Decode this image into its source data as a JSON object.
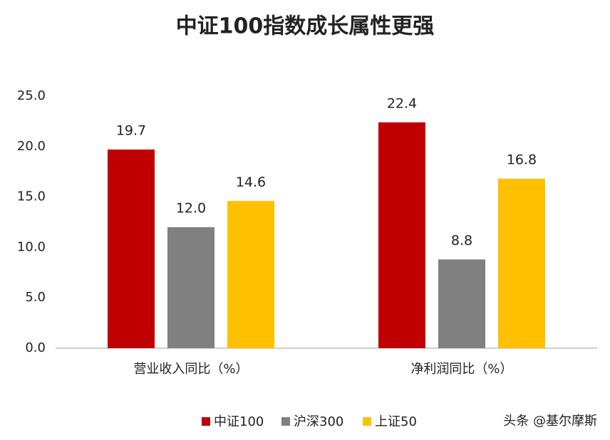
{
  "chart_data": {
    "type": "bar",
    "title": "中证100指数成长属性更强",
    "categories": [
      "营业收入同比（%）",
      "净利润同比（%）"
    ],
    "series": [
      {
        "name": "中证100",
        "color": "#c00000",
        "values": [
          19.7,
          22.4
        ],
        "value_labels": [
          "19.7",
          "22.4"
        ]
      },
      {
        "name": "沪深300",
        "color": "#808080",
        "values": [
          12.0,
          8.8
        ],
        "value_labels": [
          "12.0",
          "8.8"
        ]
      },
      {
        "name": "上证50",
        "color": "#ffc000",
        "values": [
          14.6,
          16.8
        ],
        "value_labels": [
          "14.6",
          "16.8"
        ]
      }
    ],
    "ylim": [
      0,
      25
    ],
    "yticks": [
      {
        "value": 0,
        "label": "0.0"
      },
      {
        "value": 5,
        "label": "5.0"
      },
      {
        "value": 10,
        "label": "10.0"
      },
      {
        "value": 15,
        "label": "15.0"
      },
      {
        "value": 20,
        "label": "20.0"
      },
      {
        "value": 25,
        "label": "25.0"
      }
    ],
    "grid": false,
    "legend": "bottom",
    "watermark": "头条 @基尔摩斯"
  }
}
